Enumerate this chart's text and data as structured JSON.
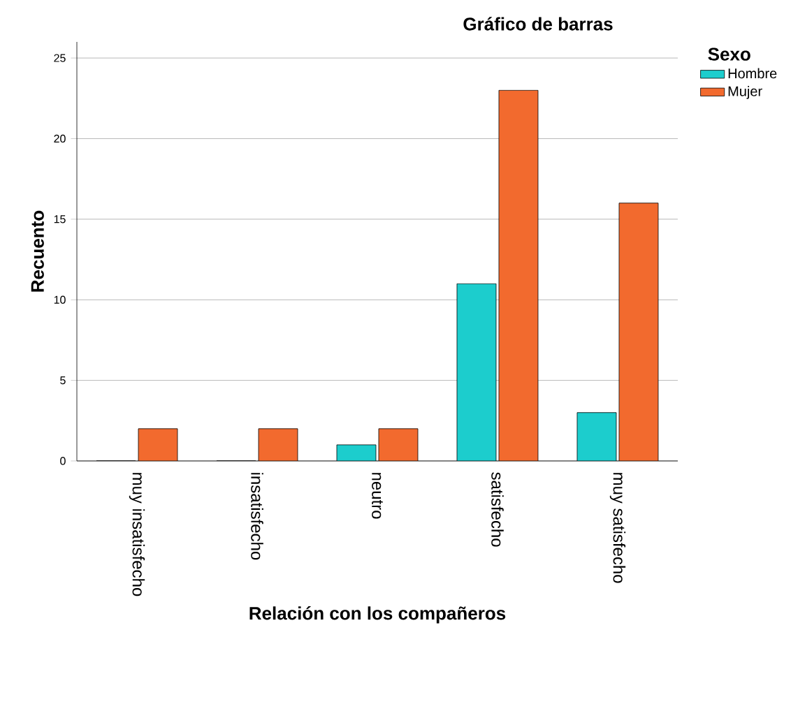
{
  "chart_data": {
    "type": "bar",
    "title": "Gráfico de barras",
    "xlabel": "Relación con los compañeros",
    "ylabel": "Recuento",
    "legend_title": "Sexo",
    "categories": [
      "muy insatisfecho",
      "insatisfecho",
      "neutro",
      "satisfecho",
      "muy satisfecho"
    ],
    "series": [
      {
        "name": "Hombre",
        "color": "#1ccdcd",
        "values": [
          0,
          0,
          1,
          11,
          3
        ]
      },
      {
        "name": "Mujer",
        "color": "#f26a2e",
        "values": [
          2,
          2,
          2,
          23,
          16
        ]
      }
    ],
    "ylim": [
      0,
      26
    ],
    "yticks": [
      0,
      5,
      10,
      15,
      20,
      25
    ],
    "grid": "y",
    "legend": "top right"
  }
}
